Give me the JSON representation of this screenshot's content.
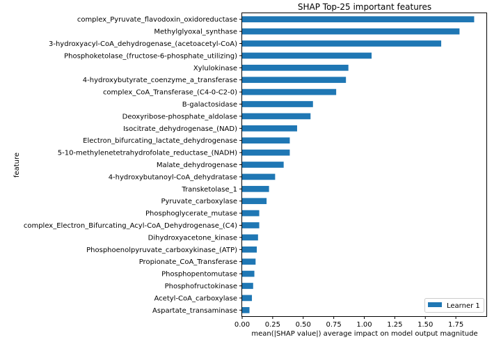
{
  "chart_data": {
    "type": "bar",
    "orientation": "horizontal",
    "title": "SHAP Top-25 important features",
    "xlabel": "mean(|SHAP value|) average impact on model output magnitude",
    "ylabel": "feature",
    "xlim": [
      0,
      2.0
    ],
    "xticks": [
      0.0,
      0.25,
      0.5,
      0.75,
      1.0,
      1.25,
      1.5,
      1.75
    ],
    "xtick_labels": [
      "0.00",
      "0.25",
      "0.50",
      "0.75",
      "1.00",
      "1.25",
      "1.50",
      "1.75"
    ],
    "grid": false,
    "legend_position": "bottom-right",
    "bar_color": "#1f77b4",
    "categories": [
      "complex_Pyruvate_flavodoxin_oxidoreductase",
      "Methylglyoxal_synthase",
      "3-hydroxyacyl-CoA_dehydrogenase_(acetoacetyl-CoA)",
      "Phosphoketolase_(fructose-6-phosphate_utilizing)",
      "Xylulokinase",
      "4-hydroxybutyrate_coenzyme_a_transferase",
      "complex_CoA_Transferase_(C4-0-C2-0)",
      "B-galactosidase",
      "Deoxyribose-phosphate_aldolase",
      "Isocitrate_dehydrogenase_(NAD)",
      "Electron_bifurcating_lactate_dehydrogenase",
      "5-10-methylenetetrahydrofolate_reductase_(NADH)",
      "Malate_dehydrogenase",
      "4-hydroxybutanoyl-CoA_dehydratase",
      "Transketolase_1",
      "Pyruvate_carboxylase",
      "Phosphoglycerate_mutase",
      "complex_Electron_Bifurcating_Acyl-CoA_Dehydrogenase_(C4)",
      "Dihydroxyacetone_kinase",
      "Phosphoenolpyruvate_carboxykinase_(ATP)",
      "Propionate_CoA_Transferase",
      "Phosphopentomutase",
      "Phosphofructokinase",
      "Acetyl-CoA_carboxylase",
      "Aspartate_transaminase"
    ],
    "series": [
      {
        "name": "Learner 1",
        "values": [
          1.9,
          1.78,
          1.63,
          1.06,
          0.87,
          0.85,
          0.77,
          0.58,
          0.56,
          0.45,
          0.39,
          0.39,
          0.34,
          0.27,
          0.22,
          0.2,
          0.14,
          0.14,
          0.13,
          0.12,
          0.11,
          0.1,
          0.09,
          0.08,
          0.06
        ]
      }
    ]
  }
}
